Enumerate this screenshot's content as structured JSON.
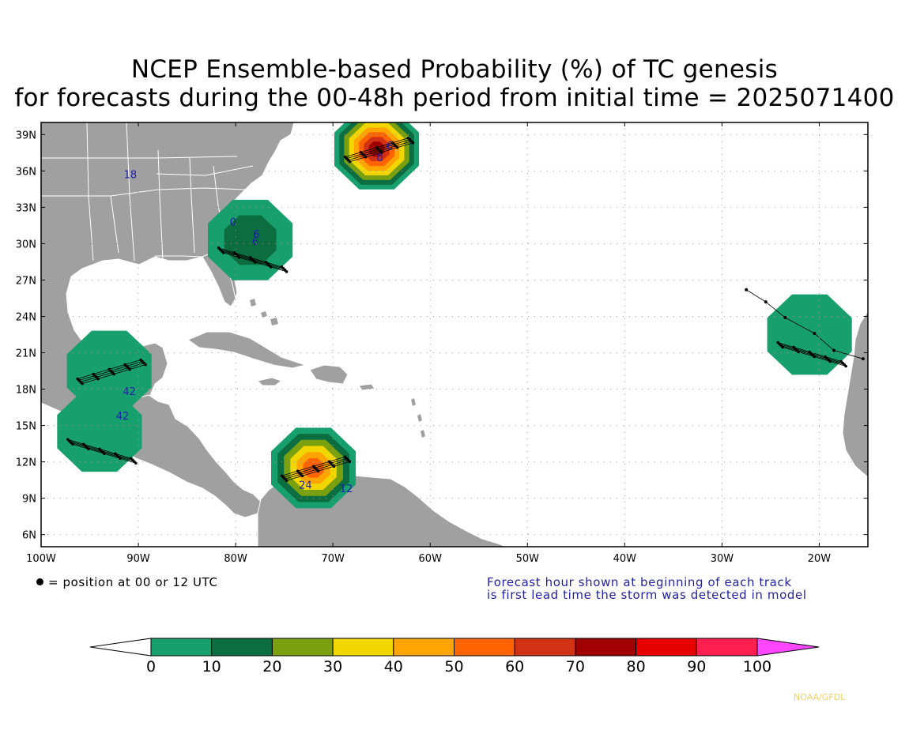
{
  "title": {
    "line1": "NCEP Ensemble-based Probability (%) of TC genesis",
    "line2": "for forecasts during the 00-48h period from initial time = 2025071400"
  },
  "map": {
    "lon_range": [
      -100,
      -15
    ],
    "lat_range": [
      5,
      40
    ],
    "lat_ticks": [
      {
        "value": 39,
        "label": "39N"
      },
      {
        "value": 36,
        "label": "36N"
      },
      {
        "value": 33,
        "label": "33N"
      },
      {
        "value": 30,
        "label": "30N"
      },
      {
        "value": 27,
        "label": "27N"
      },
      {
        "value": 24,
        "label": "24N"
      },
      {
        "value": 21,
        "label": "21N"
      },
      {
        "value": 18,
        "label": "18N"
      },
      {
        "value": 15,
        "label": "15N"
      },
      {
        "value": 12,
        "label": "12N"
      },
      {
        "value": 9,
        "label": "9N"
      },
      {
        "value": 6,
        "label": "6N"
      }
    ],
    "lon_ticks": [
      {
        "value": -100,
        "label": "100W"
      },
      {
        "value": -90,
        "label": "90W"
      },
      {
        "value": -80,
        "label": "80W"
      },
      {
        "value": -70,
        "label": "70W"
      },
      {
        "value": -60,
        "label": "60W"
      },
      {
        "value": -50,
        "label": "50W"
      },
      {
        "value": -40,
        "label": "40W"
      },
      {
        "value": -30,
        "label": "30W"
      },
      {
        "value": -20,
        "label": "20W"
      }
    ],
    "land_color": "#a0a0a0",
    "ocean_color": "#ffffff",
    "grid": true
  },
  "probability_areas": [
    {
      "region": "Mid-Atlantic offshore",
      "center": [
        -65.5,
        37.8
      ],
      "max_prob": 80
    },
    {
      "region": "Southeast US coast",
      "center": [
        -78.5,
        30.3
      ],
      "max_prob": 20
    },
    {
      "region": "Southern Caribbean",
      "center": [
        -72,
        11.5
      ],
      "max_prob": 60
    },
    {
      "region": "Eastern Atlantic near Africa",
      "center": [
        -21,
        22.5
      ],
      "max_prob": 10
    },
    {
      "region": "Bay of Campeche",
      "center": [
        -93,
        19.5
      ],
      "max_prob": 10
    },
    {
      "region": "Gulf of Tehuantepec",
      "center": [
        -94,
        14.5
      ],
      "max_prob": 10
    }
  ],
  "track_labels": [
    {
      "text": "18",
      "lon": -91.5,
      "lat": 35.4
    },
    {
      "text": "0",
      "lon": -80.6,
      "lat": 31.5
    },
    {
      "text": "6",
      "lon": -78.2,
      "lat": 30.5
    },
    {
      "text": "6",
      "lon": -78.3,
      "lat": 29.9
    },
    {
      "text": "6",
      "lon": -64.5,
      "lat": 37.8
    },
    {
      "text": "0",
      "lon": -65.5,
      "lat": 36.8
    },
    {
      "text": "42",
      "lon": -91.6,
      "lat": 17.5
    },
    {
      "text": "42",
      "lon": -92.3,
      "lat": 15.5
    },
    {
      "text": "24",
      "lon": -73.5,
      "lat": 9.8
    },
    {
      "text": "12",
      "lon": -69.3,
      "lat": 9.5
    }
  ],
  "colorbar": {
    "colors": [
      "#ffffff",
      "#17a06e",
      "#0c6e40",
      "#7aa010",
      "#f2d600",
      "#ffa400",
      "#ff6400",
      "#d23214",
      "#a00000",
      "#e60000",
      "#ff2050",
      "#ff46ff"
    ],
    "labels": [
      "0",
      "10",
      "20",
      "30",
      "40",
      "50",
      "60",
      "70",
      "80",
      "90",
      "100"
    ]
  },
  "notes": {
    "dot": "= position at 00 or 12 UTC",
    "forecast_line1": "Forecast hour shown at beginning of each track",
    "forecast_line2": "is first lead time the storm was detected in model"
  },
  "credit": "NOAA/GFDL"
}
